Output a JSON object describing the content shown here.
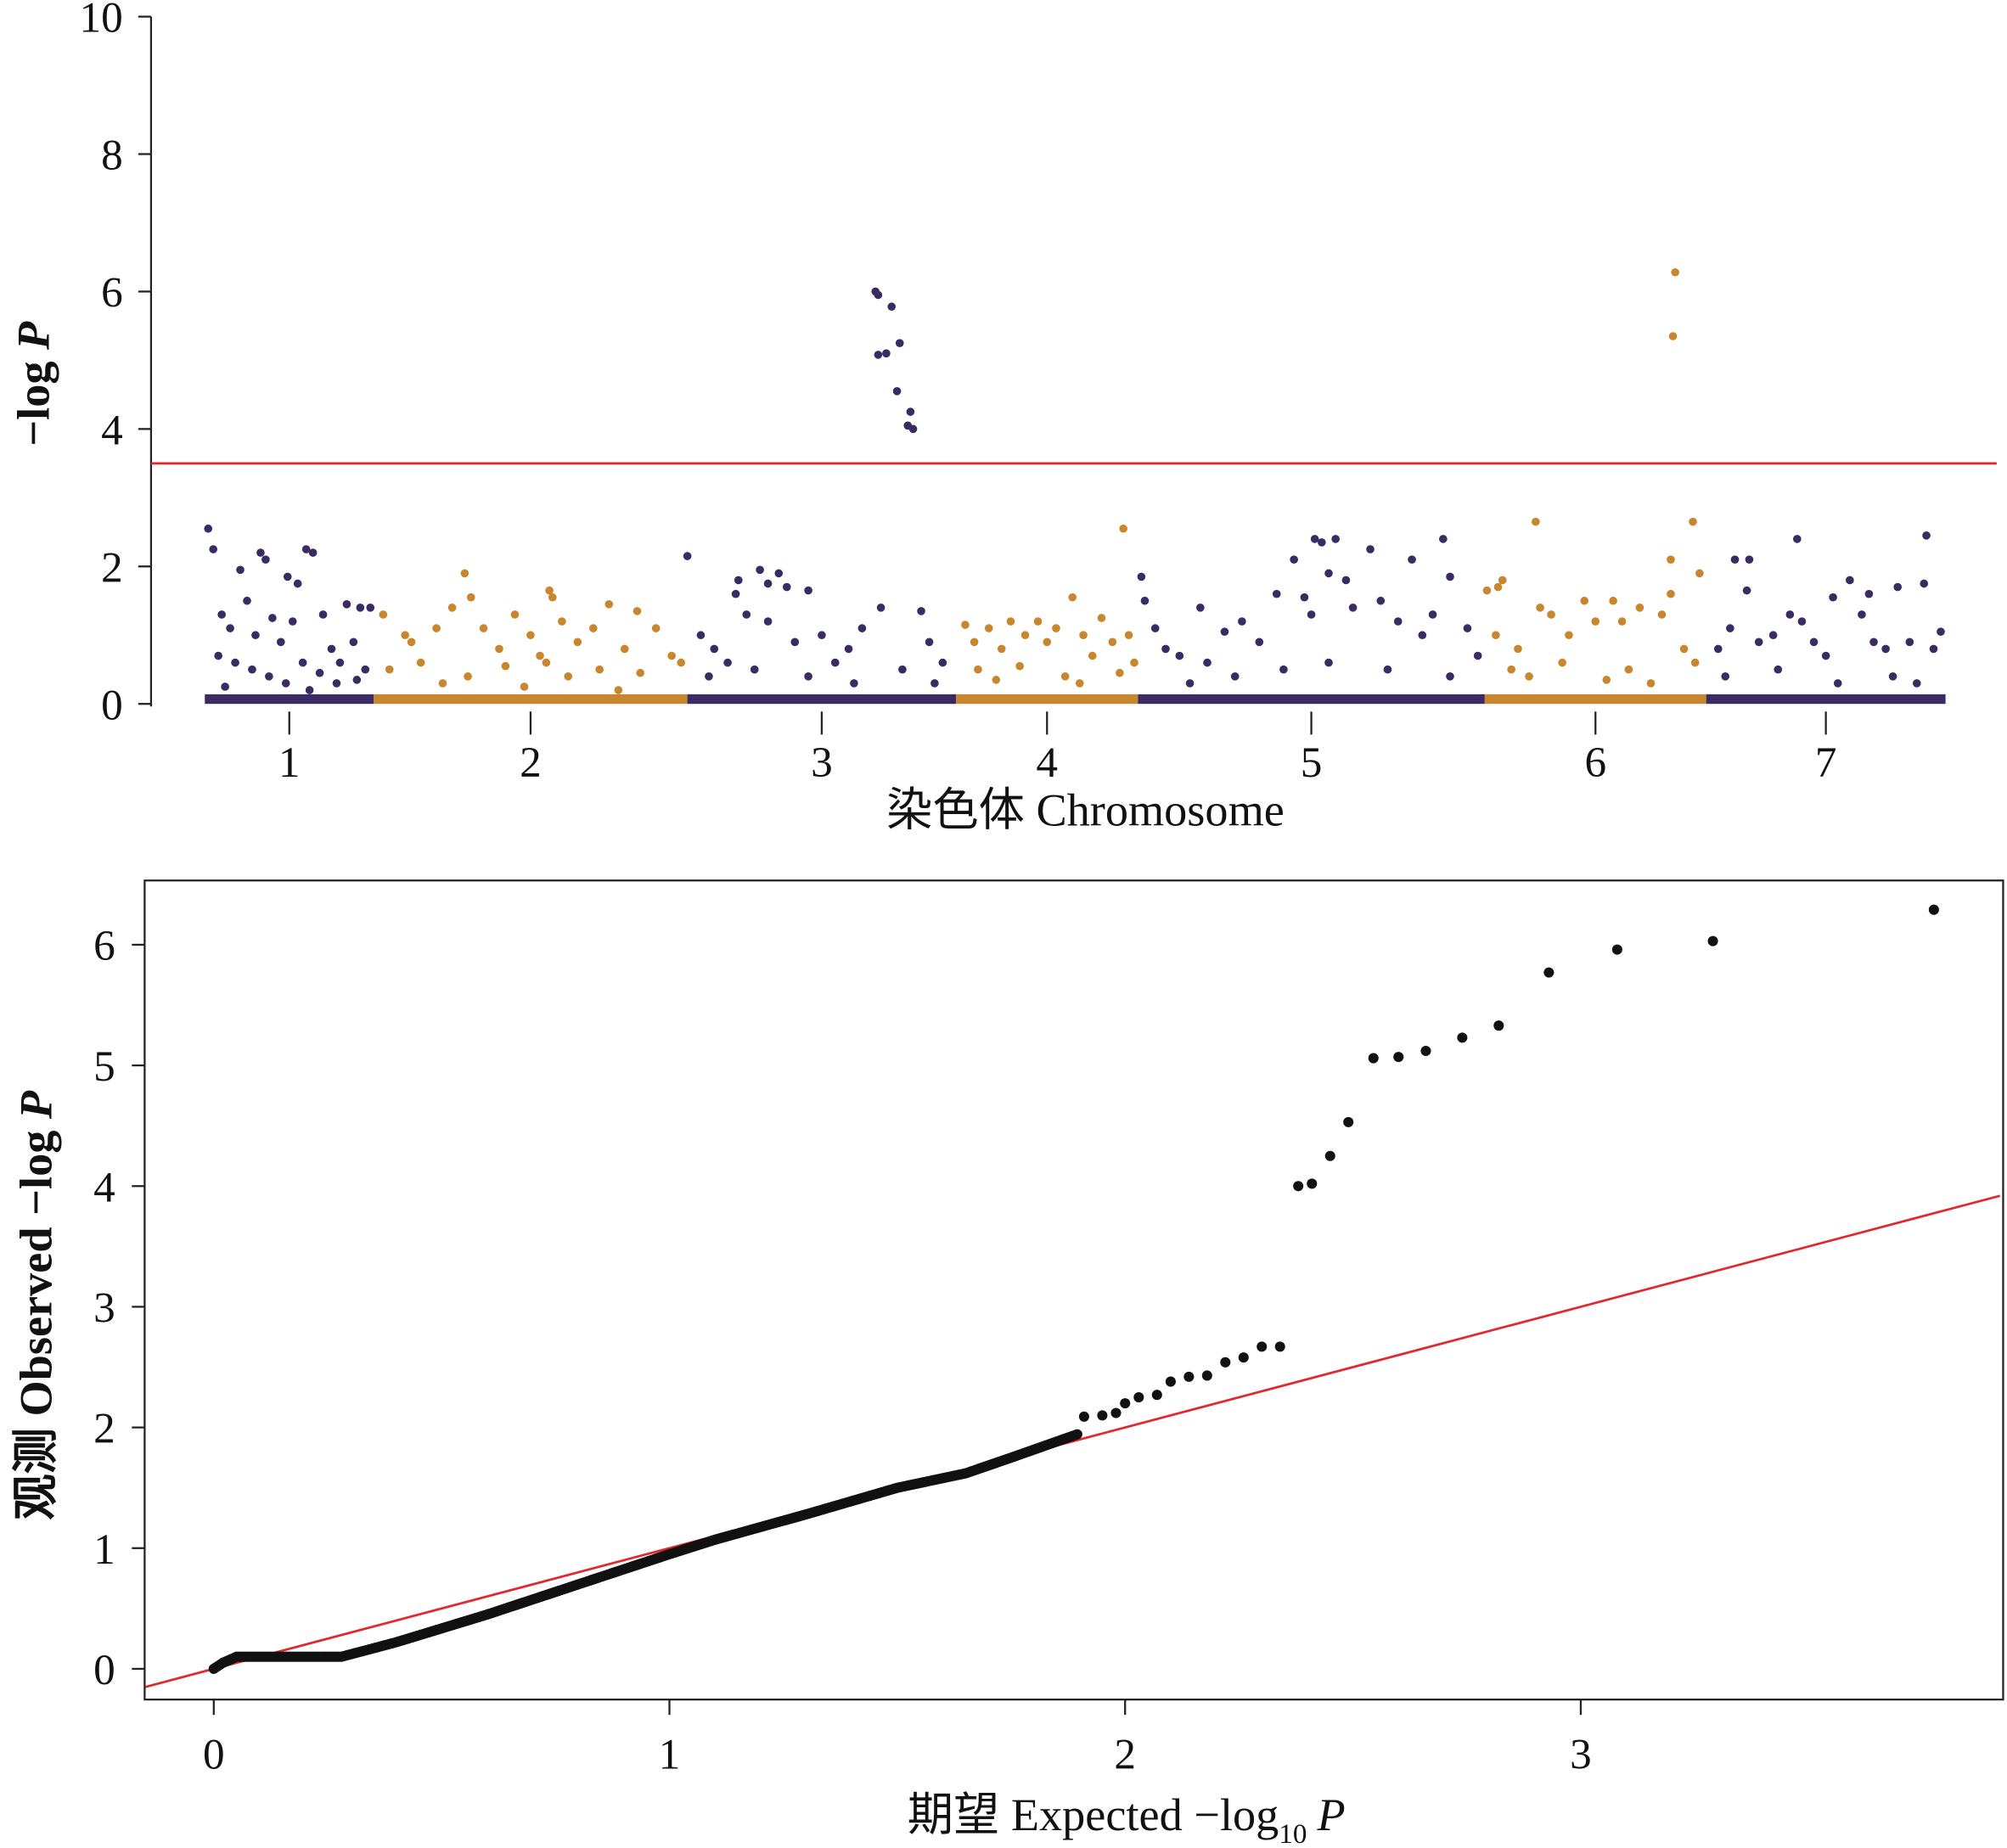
{
  "colors": {
    "purple": "#3a2c62",
    "orange": "#c8872f",
    "threshold": "#e0282e",
    "qq_points": "#111111"
  },
  "chart_data": [
    {
      "type": "scatter",
      "subtype": "manhattan",
      "ylabel_prefix": "−log ",
      "ylabel_italic": "P",
      "xlabel": "染色体 Chromosome",
      "ylim": [
        0,
        10
      ],
      "yticks": [
        "0",
        "2",
        "4",
        "6",
        "8",
        "10"
      ],
      "threshold": 3.5,
      "grid": false,
      "chromosomes": [
        {
          "label": "1",
          "color": "purple",
          "points": [
            [
              0.02,
              2.55
            ],
            [
              0.05,
              2.25
            ],
            [
              0.21,
              1.95
            ],
            [
              0.33,
              2.2
            ],
            [
              0.36,
              2.1
            ],
            [
              0.49,
              1.85
            ],
            [
              0.55,
              1.75
            ],
            [
              0.6,
              2.25
            ],
            [
              0.64,
              2.2
            ],
            [
              0.84,
              1.45
            ],
            [
              0.92,
              1.4
            ],
            [
              0.98,
              1.4
            ],
            [
              0.1,
              1.3
            ],
            [
              0.15,
              1.1
            ],
            [
              0.25,
              1.5
            ],
            [
              0.3,
              1.0
            ],
            [
              0.4,
              1.25
            ],
            [
              0.45,
              0.9
            ],
            [
              0.52,
              1.2
            ],
            [
              0.7,
              1.3
            ],
            [
              0.75,
              0.8
            ],
            [
              0.8,
              0.6
            ],
            [
              0.88,
              0.9
            ],
            [
              0.95,
              0.5
            ],
            [
              0.08,
              0.7
            ],
            [
              0.18,
              0.6
            ],
            [
              0.28,
              0.5
            ],
            [
              0.38,
              0.4
            ],
            [
              0.58,
              0.6
            ],
            [
              0.68,
              0.45
            ],
            [
              0.78,
              0.3
            ],
            [
              0.9,
              0.35
            ],
            [
              0.12,
              0.25
            ],
            [
              0.48,
              0.3
            ],
            [
              0.62,
              0.2
            ]
          ]
        },
        {
          "label": "2",
          "color": "orange",
          "points": [
            [
              0.29,
              1.9
            ],
            [
              0.31,
              1.55
            ],
            [
              0.56,
              1.65
            ],
            [
              0.57,
              1.55
            ],
            [
              0.75,
              1.45
            ],
            [
              0.84,
              1.35
            ],
            [
              0.03,
              1.3
            ],
            [
              0.1,
              1.0
            ],
            [
              0.12,
              0.9
            ],
            [
              0.2,
              1.1
            ],
            [
              0.25,
              1.4
            ],
            [
              0.35,
              1.1
            ],
            [
              0.4,
              0.8
            ],
            [
              0.45,
              1.3
            ],
            [
              0.5,
              1.0
            ],
            [
              0.53,
              0.7
            ],
            [
              0.6,
              1.2
            ],
            [
              0.65,
              0.9
            ],
            [
              0.7,
              1.1
            ],
            [
              0.8,
              0.8
            ],
            [
              0.9,
              1.1
            ],
            [
              0.95,
              0.7
            ],
            [
              0.05,
              0.5
            ],
            [
              0.15,
              0.6
            ],
            [
              0.3,
              0.4
            ],
            [
              0.42,
              0.55
            ],
            [
              0.55,
              0.6
            ],
            [
              0.62,
              0.4
            ],
            [
              0.72,
              0.5
            ],
            [
              0.85,
              0.45
            ],
            [
              0.98,
              0.6
            ],
            [
              0.22,
              0.3
            ],
            [
              0.48,
              0.25
            ],
            [
              0.78,
              0.2
            ]
          ]
        },
        {
          "label": "3",
          "color": "purple",
          "points": [
            [
              0.0,
              2.15
            ],
            [
              0.27,
              1.95
            ],
            [
              0.34,
              1.9
            ],
            [
              0.3,
              1.75
            ],
            [
              0.19,
              1.8
            ],
            [
              0.18,
              1.6
            ],
            [
              0.37,
              1.7
            ],
            [
              0.45,
              1.65
            ],
            [
              0.7,
              6.0
            ],
            [
              0.71,
              5.95
            ],
            [
              0.76,
              5.78
            ],
            [
              0.79,
              5.25
            ],
            [
              0.71,
              5.08
            ],
            [
              0.74,
              5.1
            ],
            [
              0.78,
              4.55
            ],
            [
              0.83,
              4.25
            ],
            [
              0.82,
              4.05
            ],
            [
              0.84,
              4.0
            ],
            [
              0.72,
              1.4
            ],
            [
              0.87,
              1.35
            ],
            [
              0.05,
              1.0
            ],
            [
              0.1,
              0.8
            ],
            [
              0.15,
              0.6
            ],
            [
              0.22,
              1.3
            ],
            [
              0.3,
              1.2
            ],
            [
              0.4,
              0.9
            ],
            [
              0.5,
              1.0
            ],
            [
              0.55,
              0.6
            ],
            [
              0.6,
              0.8
            ],
            [
              0.65,
              1.1
            ],
            [
              0.9,
              0.9
            ],
            [
              0.95,
              0.6
            ],
            [
              0.08,
              0.4
            ],
            [
              0.25,
              0.5
            ],
            [
              0.45,
              0.4
            ],
            [
              0.62,
              0.3
            ],
            [
              0.8,
              0.5
            ],
            [
              0.92,
              0.3
            ]
          ]
        },
        {
          "label": "4",
          "color": "orange",
          "points": [
            [
              0.92,
              2.55
            ],
            [
              0.64,
              1.55
            ],
            [
              0.05,
              1.15
            ],
            [
              0.1,
              0.9
            ],
            [
              0.18,
              1.1
            ],
            [
              0.25,
              0.8
            ],
            [
              0.3,
              1.2
            ],
            [
              0.38,
              1.0
            ],
            [
              0.45,
              1.2
            ],
            [
              0.5,
              0.9
            ],
            [
              0.55,
              1.1
            ],
            [
              0.7,
              1.0
            ],
            [
              0.75,
              0.7
            ],
            [
              0.8,
              1.25
            ],
            [
              0.86,
              0.9
            ],
            [
              0.95,
              1.0
            ],
            [
              0.98,
              0.6
            ],
            [
              0.12,
              0.5
            ],
            [
              0.22,
              0.35
            ],
            [
              0.35,
              0.55
            ],
            [
              0.6,
              0.4
            ],
            [
              0.68,
              0.3
            ],
            [
              0.9,
              0.45
            ]
          ]
        },
        {
          "label": "5",
          "color": "purple",
          "points": [
            [
              0.01,
              1.85
            ],
            [
              0.51,
              2.4
            ],
            [
              0.53,
              2.35
            ],
            [
              0.57,
              2.4
            ],
            [
              0.45,
              2.1
            ],
            [
              0.67,
              2.25
            ],
            [
              0.79,
              2.1
            ],
            [
              0.88,
              2.4
            ],
            [
              0.9,
              1.85
            ],
            [
              0.55,
              1.9
            ],
            [
              0.18,
              1.4
            ],
            [
              0.02,
              1.5
            ],
            [
              0.05,
              1.1
            ],
            [
              0.08,
              0.8
            ],
            [
              0.12,
              0.7
            ],
            [
              0.2,
              0.6
            ],
            [
              0.25,
              1.05
            ],
            [
              0.3,
              1.2
            ],
            [
              0.35,
              0.9
            ],
            [
              0.4,
              1.6
            ],
            [
              0.48,
              1.55
            ],
            [
              0.5,
              1.3
            ],
            [
              0.6,
              1.8
            ],
            [
              0.62,
              1.4
            ],
            [
              0.7,
              1.5
            ],
            [
              0.75,
              1.2
            ],
            [
              0.82,
              1.0
            ],
            [
              0.85,
              1.3
            ],
            [
              0.95,
              1.1
            ],
            [
              0.98,
              0.7
            ],
            [
              0.15,
              0.3
            ],
            [
              0.28,
              0.4
            ],
            [
              0.42,
              0.5
            ],
            [
              0.55,
              0.6
            ],
            [
              0.72,
              0.5
            ],
            [
              0.9,
              0.4
            ]
          ]
        },
        {
          "label": "6",
          "color": "orange",
          "points": [
            [
              0.23,
              2.65
            ],
            [
              0.86,
              6.28
            ],
            [
              0.85,
              5.35
            ],
            [
              0.94,
              2.65
            ],
            [
              0.84,
              2.1
            ],
            [
              0.97,
              1.9
            ],
            [
              0.84,
              1.6
            ],
            [
              0.08,
              1.8
            ],
            [
              0.06,
              1.7
            ],
            [
              0.01,
              1.65
            ],
            [
              0.05,
              1.0
            ],
            [
              0.15,
              0.8
            ],
            [
              0.25,
              1.4
            ],
            [
              0.3,
              1.3
            ],
            [
              0.38,
              1.0
            ],
            [
              0.45,
              1.5
            ],
            [
              0.5,
              1.2
            ],
            [
              0.58,
              1.5
            ],
            [
              0.62,
              1.2
            ],
            [
              0.7,
              1.4
            ],
            [
              0.8,
              1.3
            ],
            [
              0.9,
              0.8
            ],
            [
              0.12,
              0.5
            ],
            [
              0.2,
              0.4
            ],
            [
              0.35,
              0.6
            ],
            [
              0.55,
              0.35
            ],
            [
              0.65,
              0.5
            ],
            [
              0.75,
              0.3
            ],
            [
              0.95,
              0.6
            ]
          ]
        },
        {
          "label": "7",
          "color": "purple",
          "points": [
            [
              0.12,
              2.1
            ],
            [
              0.18,
              2.1
            ],
            [
              0.38,
              2.4
            ],
            [
              0.92,
              2.45
            ],
            [
              0.6,
              1.8
            ],
            [
              0.91,
              1.75
            ],
            [
              0.8,
              1.7
            ],
            [
              0.17,
              1.65
            ],
            [
              0.68,
              1.6
            ],
            [
              0.53,
              1.55
            ],
            [
              0.98,
              1.05
            ],
            [
              0.05,
              0.8
            ],
            [
              0.1,
              1.1
            ],
            [
              0.22,
              0.9
            ],
            [
              0.28,
              1.0
            ],
            [
              0.35,
              1.3
            ],
            [
              0.4,
              1.2
            ],
            [
              0.45,
              0.9
            ],
            [
              0.5,
              0.7
            ],
            [
              0.65,
              1.3
            ],
            [
              0.7,
              0.9
            ],
            [
              0.75,
              0.8
            ],
            [
              0.85,
              0.9
            ],
            [
              0.95,
              0.8
            ],
            [
              0.08,
              0.4
            ],
            [
              0.3,
              0.5
            ],
            [
              0.55,
              0.3
            ],
            [
              0.78,
              0.4
            ],
            [
              0.88,
              0.3
            ]
          ]
        }
      ]
    },
    {
      "type": "scatter",
      "subtype": "qq",
      "xlabel_prefix": "期望 Expected −log",
      "xlabel_sub": "10",
      "xlabel_italic": "P",
      "ylabel_prefix": "观测 Observed  −log ",
      "ylabel_italic": "P",
      "xlim": [
        -0.15,
        3.92
      ],
      "ylim": [
        -0.25,
        6.55
      ],
      "xticks": [
        "0",
        "1",
        "2",
        "3"
      ],
      "yticks": [
        "0",
        "1",
        "2",
        "3",
        "4",
        "5",
        "6"
      ],
      "reference_line": "y = x",
      "grid": false,
      "curve": [
        [
          0,
          0
        ],
        [
          0.02,
          0.05
        ],
        [
          0.05,
          0.1
        ],
        [
          0.28,
          0.1
        ],
        [
          0.4,
          0.22
        ],
        [
          0.6,
          0.45
        ],
        [
          0.8,
          0.7
        ],
        [
          1.0,
          0.95
        ],
        [
          1.1,
          1.07
        ],
        [
          1.3,
          1.28
        ],
        [
          1.5,
          1.5
        ],
        [
          1.65,
          1.62
        ],
        [
          1.75,
          1.75
        ],
        [
          1.9,
          1.95
        ]
      ],
      "points": [
        [
          1.91,
          2.09
        ],
        [
          1.95,
          2.1
        ],
        [
          1.98,
          2.12
        ],
        [
          2.0,
          2.2
        ],
        [
          2.03,
          2.25
        ],
        [
          2.07,
          2.27
        ],
        [
          2.1,
          2.38
        ],
        [
          2.14,
          2.42
        ],
        [
          2.18,
          2.43
        ],
        [
          2.22,
          2.54
        ],
        [
          2.26,
          2.58
        ],
        [
          2.3,
          2.67
        ],
        [
          2.34,
          2.67
        ],
        [
          2.38,
          4.0
        ],
        [
          2.41,
          4.02
        ],
        [
          2.45,
          4.25
        ],
        [
          2.49,
          4.53
        ],
        [
          2.545,
          5.06
        ],
        [
          2.6,
          5.07
        ],
        [
          2.66,
          5.12
        ],
        [
          2.74,
          5.23
        ],
        [
          2.82,
          5.33
        ],
        [
          2.93,
          5.77
        ],
        [
          3.08,
          5.96
        ],
        [
          3.29,
          6.03
        ],
        [
          3.775,
          6.29
        ]
      ]
    }
  ]
}
